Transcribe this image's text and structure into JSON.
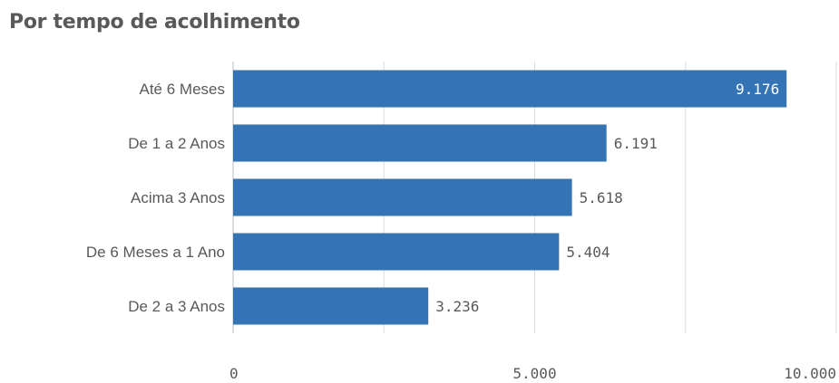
{
  "title": "Por tempo de acolhimento",
  "chart_data": {
    "type": "bar",
    "orientation": "horizontal",
    "categories": [
      "Até 6 Meses",
      "De 1 a 2 Anos",
      "Acima 3 Anos",
      "De 6 Meses a 1 Ano",
      "De 2 a 3 Anos"
    ],
    "values": [
      9176,
      6191,
      5618,
      5404,
      3236
    ],
    "value_labels": [
      "9.176",
      "6.191",
      "5.618",
      "5.404",
      "3.236"
    ],
    "xlim": [
      0,
      10000
    ],
    "xticks": [
      0,
      5000,
      10000
    ],
    "xtick_labels": [
      "0",
      "5.000",
      "10.000"
    ],
    "grid": true,
    "bar_color": "#3474b5",
    "grid_color": "#dddddd",
    "label_color": "#595959",
    "inside_label_color": "#ffffff"
  }
}
